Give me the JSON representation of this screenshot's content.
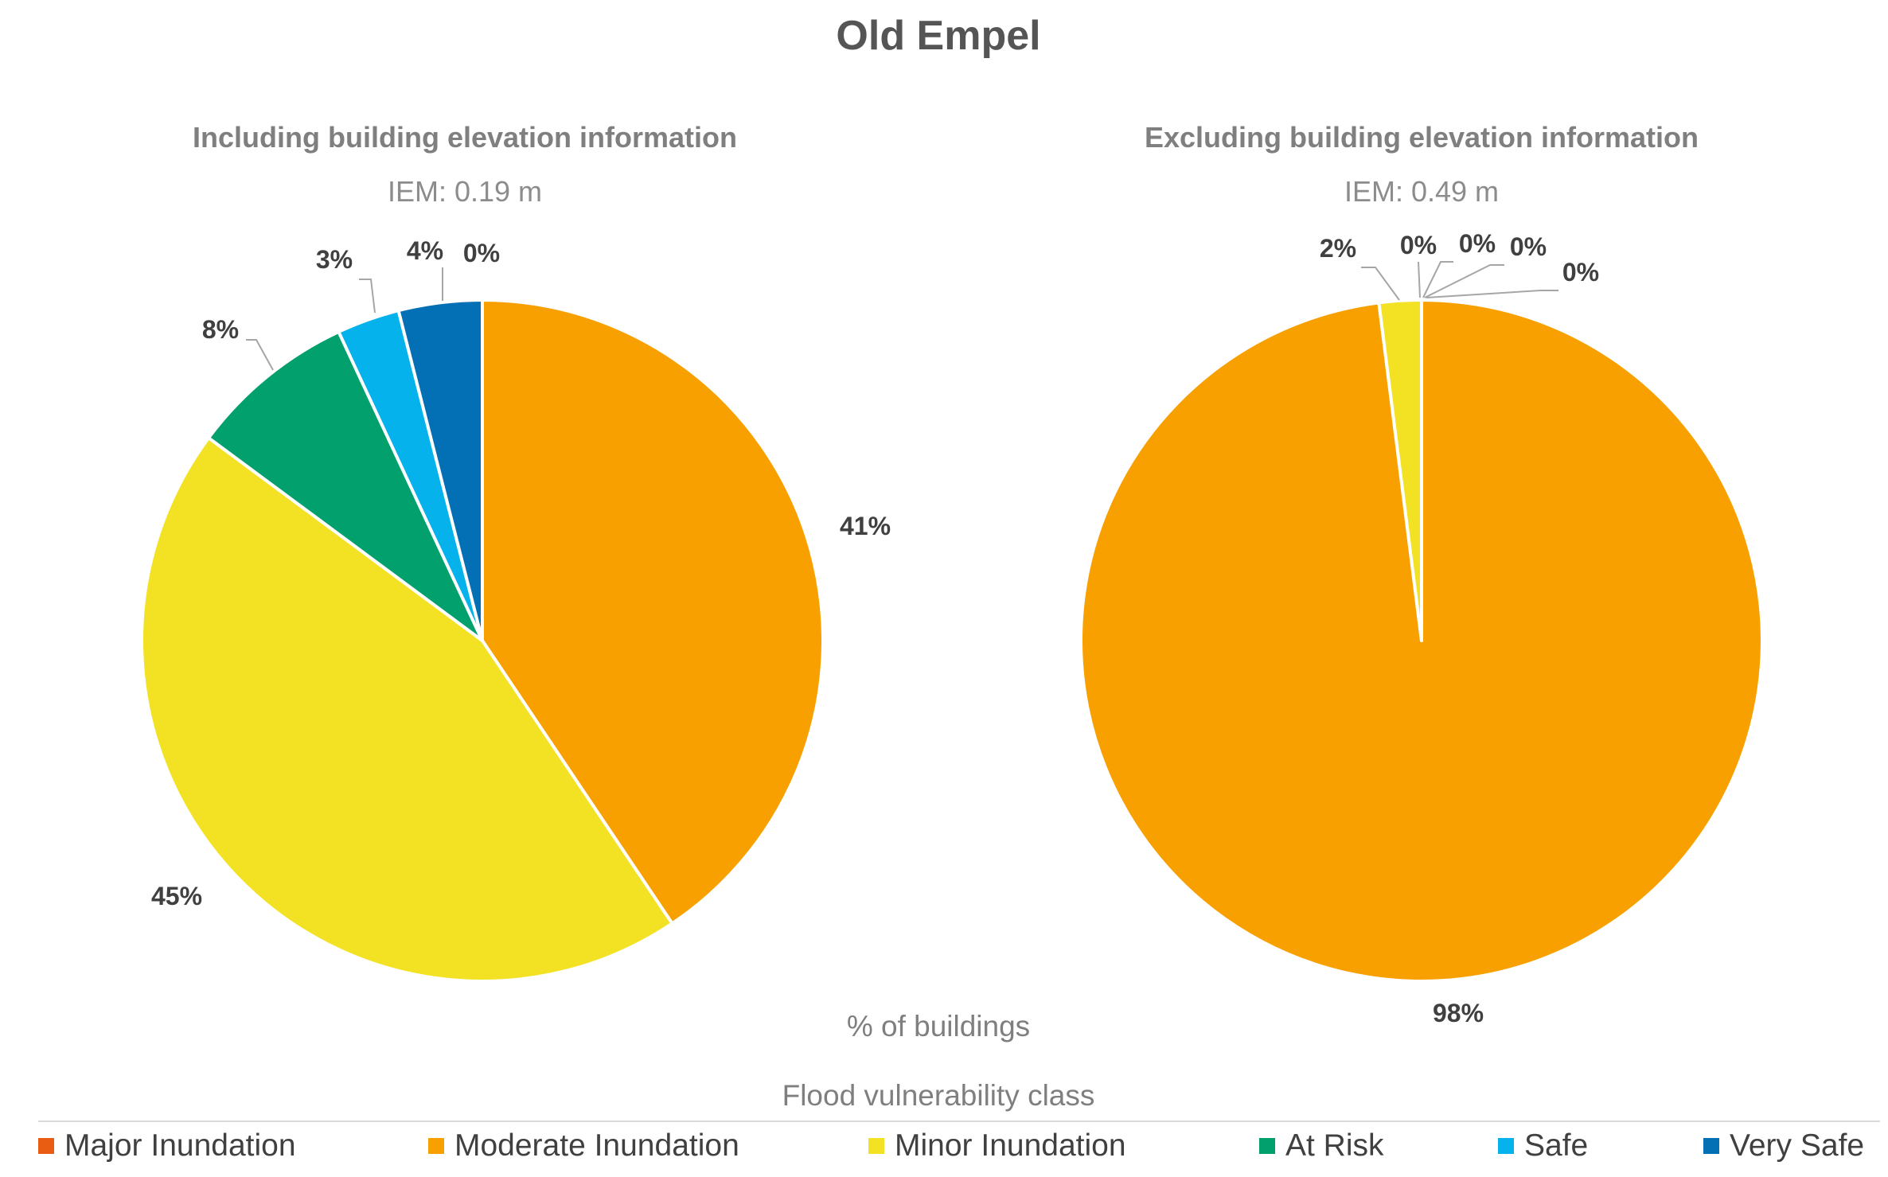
{
  "title": "Old Empel",
  "xlabel": "% of buildings",
  "legend_title": "Flood vulnerability class",
  "colors": {
    "Major Inundation": "#e85d12",
    "Moderate Inundation": "#f9a001",
    "Minor Inundation": "#f3e224",
    "At Risk": "#01a06d",
    "Safe": "#05b2ec",
    "Very Safe": "#0370b5"
  },
  "chart_data": [
    {
      "type": "pie",
      "title": "Including building elevation information",
      "subtitle": "IEM: 0.19 m",
      "categories": [
        "Major Inundation",
        "Moderate Inundation",
        "Minor Inundation",
        "At Risk",
        "Safe",
        "Very Safe"
      ],
      "values": [
        0,
        41,
        45,
        8,
        3,
        4
      ],
      "labels": [
        "0%",
        "41%",
        "45%",
        "8%",
        "3%",
        "4%"
      ]
    },
    {
      "type": "pie",
      "title": "Excluding building elevation information",
      "subtitle": "IEM: 0.49 m",
      "categories": [
        "Major Inundation",
        "Moderate Inundation",
        "Minor Inundation",
        "At Risk",
        "Safe",
        "Very Safe"
      ],
      "values": [
        0,
        98,
        2,
        0,
        0,
        0
      ],
      "labels": [
        "0%",
        "98%",
        "2%",
        "0%",
        "0%",
        "0%"
      ]
    }
  ],
  "legend": [
    "Major Inundation",
    "Moderate Inundation",
    "Minor Inundation",
    "At Risk",
    "Safe",
    "Very Safe"
  ]
}
